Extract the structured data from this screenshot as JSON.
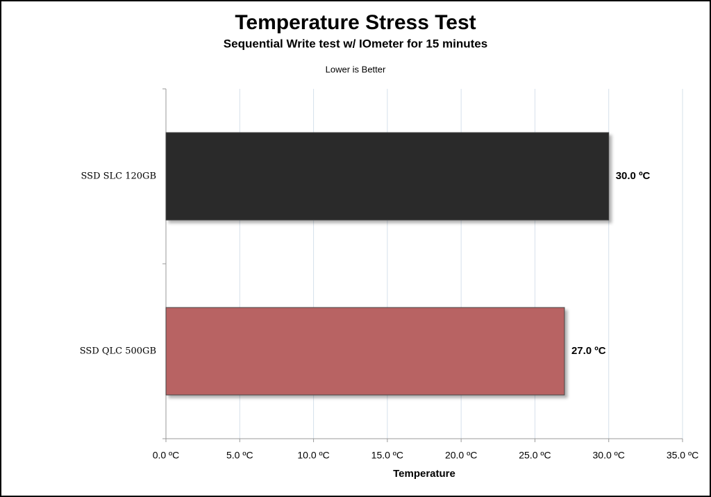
{
  "chart_data": {
    "type": "hbar",
    "title": "Temperature Stress Test",
    "subtitle": "Sequential Write test w/ IOmeter for 15 minutes",
    "note": "Lower is Better",
    "x_label": "Temperature",
    "categories": [
      "SSD SLC 120GB",
      "SSD QLC 500GB"
    ],
    "values": [
      30.0,
      27.0
    ],
    "value_labels": [
      "30.0 ºC",
      "27.0 ºC"
    ],
    "colors": [
      "#2b2b2b",
      "#b86464"
    ],
    "xlim": [
      0,
      35
    ],
    "xticks": [
      {
        "value": 0,
        "label": "0.0 ºC"
      },
      {
        "value": 5,
        "label": "5.0 ºC"
      },
      {
        "value": 10,
        "label": "10.0 ºC"
      },
      {
        "value": 15,
        "label": "15.0 ºC"
      },
      {
        "value": 20,
        "label": "20.0 ºC"
      },
      {
        "value": 25,
        "label": "25.0 ºC"
      },
      {
        "value": 30,
        "label": "30.0 ºC"
      },
      {
        "value": 35,
        "label": "35.0 ºC"
      }
    ],
    "grid": true
  }
}
